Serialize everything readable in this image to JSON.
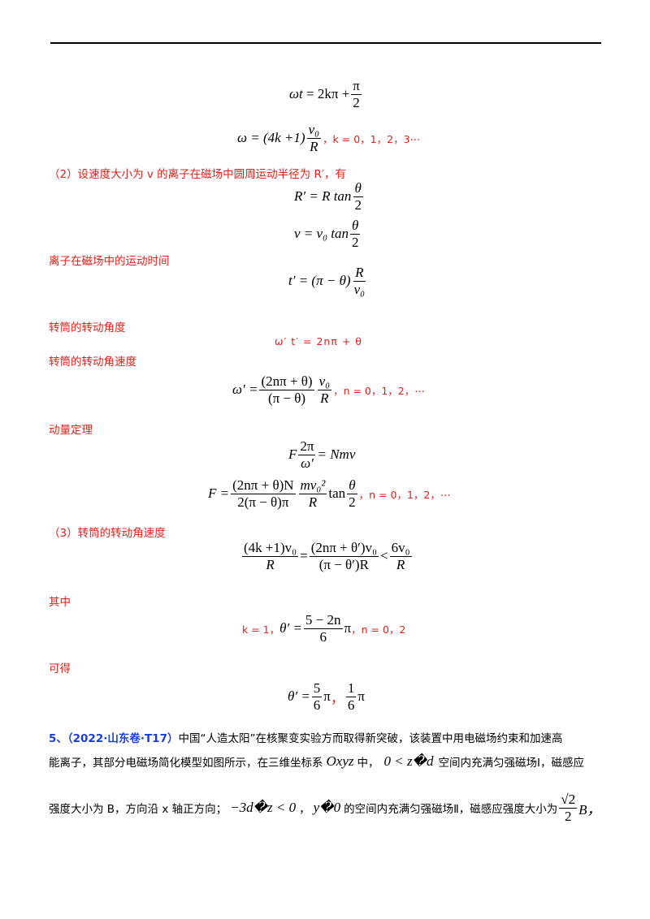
{
  "line1": {
    "lhs": "ωt",
    "eq": "= 2kπ +",
    "num": "π",
    "den": "2"
  },
  "line2": {
    "lhs": "ω = (4k +1)",
    "num": "v₀",
    "den": "R",
    "note": "，k = 0，1，2，3⋯"
  },
  "q2": {
    "text": "（2）设速度大小为 v 的离子在磁场中圆周运动半径为 R′，有"
  },
  "line3": {
    "lhs": "R′ = R tan",
    "num": "θ",
    "den": "2"
  },
  "line4": {
    "lhs": "v = v₀ tan",
    "num": "θ",
    "den": "2"
  },
  "label_time": "离子在磁场中的运动时间",
  "line5": {
    "lhs": "t′ = (π − θ)",
    "num": "R",
    "den": "v₀"
  },
  "label_angle": "转筒的转动角度",
  "line6": "ω′ t′  = 2nπ + θ",
  "label_omega": "转筒的转动角速度",
  "line7": {
    "lhs": "ω′ =",
    "num1": "(2nπ + θ)",
    "den1": "(π − θ)",
    "num2": "v₀",
    "den2": "R",
    "note": "，n = 0，1，2，⋯"
  },
  "label_momentum": "动量定理",
  "line8": {
    "lhs": "F",
    "num": "2π",
    "den": "ω′",
    "rhs": "= Nmv"
  },
  "line9": {
    "lhs": "F =",
    "num1": "(2nπ + θ)N",
    "den1": "2(π − θ)π",
    "num2": "mv₀²",
    "den2": "R",
    "mid": "tan",
    "num3": "θ",
    "den3": "2",
    "note": "，n = 0，1，2，⋯"
  },
  "q3": {
    "text": "（3）转筒的转动角速度"
  },
  "line10": {
    "num1": "(4k +1)v₀",
    "den1": "R",
    "eq": "=",
    "num2": "(2nπ + θ′)v₀",
    "den2": "(π − θ′)R",
    "lt": "<",
    "num3": "6v₀",
    "den3": "R"
  },
  "label_where": "其中",
  "line11": {
    "pre": "k = 1，",
    "lhs": "θ′ =",
    "num": "5 − 2n",
    "den": "6",
    "pi": "π",
    "note": "，n = 0，2"
  },
  "label_get": "可得",
  "line12": {
    "lhs": "θ′ =",
    "num1": "5",
    "den1": "6",
    "pi1": "π",
    "sep": "，",
    "num2": "1",
    "den2": "6",
    "pi2": "π"
  },
  "p5": {
    "tag": "5、（2022·山东卷·T17）",
    "t1": "中国“人造太阳”在核聚变实验方而取得新突破，该装置中用电磁场约束和加速高",
    "t2a": "能离子，其部分电磁场简化模型如图所示，在三维坐标系",
    "t2b": "Oxyz",
    "t2c": "中，",
    "t2d": "0 < z�d",
    "t2e": "空间内充满匀强磁场Ⅰ，磁感应",
    "t3a": "强度大小为 B，方向沿 x 轴正方向；",
    "t3b": "−3d�z < 0",
    "t3c": "，",
    "t3d": "y�0",
    "t3e": "的空间内充满匀强磁场Ⅱ，磁感应强度大小为",
    "t3num": "√2",
    "t3den": "2",
    "t3f": "B，"
  }
}
